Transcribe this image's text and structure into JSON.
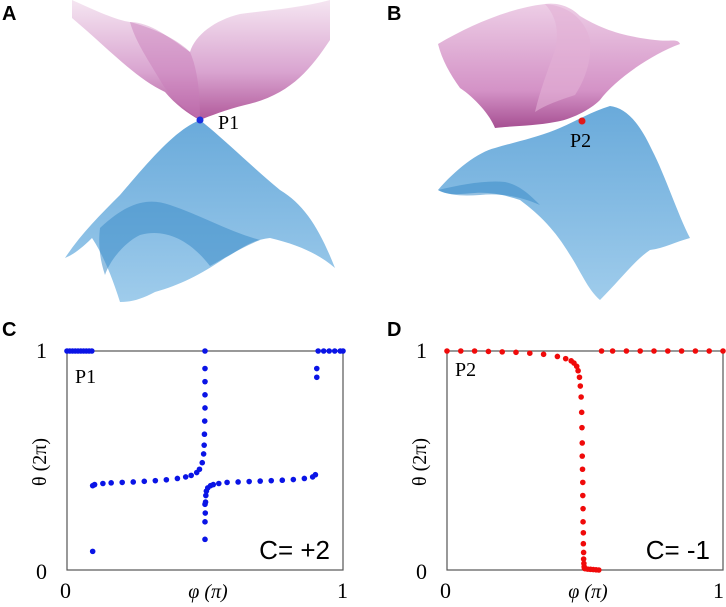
{
  "panels": {
    "A": {
      "letter": "A",
      "point_label": "P1",
      "point_color": "#1a2fe0"
    },
    "B": {
      "letter": "B",
      "point_label": "P2",
      "point_color": "#e01a1a"
    },
    "C": {
      "letter": "C"
    },
    "D": {
      "letter": "D"
    }
  },
  "colors": {
    "upper_band": "#c770b4",
    "lower_band": "#5aa6db",
    "series_blue": "#0a14e6",
    "series_red": "#f00a0a"
  },
  "chart_data": [
    {
      "panel": "C",
      "type": "scatter",
      "xlabel": "φ (π)",
      "ylabel": "θ (2π)",
      "xlim": [
        0,
        1
      ],
      "ylim": [
        0,
        1
      ],
      "xticks": [
        "0",
        "1"
      ],
      "yticks": [
        "0",
        "1"
      ],
      "inset_label": "P1",
      "annotation": "C= +2",
      "grid": false,
      "series": [
        {
          "color": "#0a14e6",
          "segments": [
            {
              "x": [
                0.0,
                0.01,
                0.02,
                0.03,
                0.04,
                0.05,
                0.06,
                0.07,
                0.08,
                0.09
              ],
              "y": [
                1.0,
                1.0,
                1.0,
                1.0,
                1.0,
                1.0,
                1.0,
                1.0,
                1.0,
                1.0
              ]
            },
            {
              "x": [
                0.093,
                0.093
              ],
              "y": [
                0.085,
                0.385
              ]
            },
            {
              "x": [
                0.1,
                0.13,
                0.16,
                0.2,
                0.24,
                0.28,
                0.32,
                0.36,
                0.4,
                0.43,
                0.45,
                0.47,
                0.48,
                0.49,
                0.495
              ],
              "y": [
                0.39,
                0.395,
                0.398,
                0.4,
                0.402,
                0.405,
                0.408,
                0.412,
                0.418,
                0.425,
                0.432,
                0.445,
                0.46,
                0.49,
                0.53
              ]
            },
            {
              "x": [
                0.497,
                0.498,
                0.499,
                0.5,
                0.5,
                0.5,
                0.5,
                0.5,
                0.5,
                0.5,
                0.5
              ],
              "y": [
                0.57,
                0.62,
                0.68,
                0.74,
                0.8,
                0.86,
                0.92,
                1.0,
                0.3,
                0.22,
                0.14
              ]
            },
            {
              "x": [
                0.501,
                0.502,
                0.503,
                0.505,
                0.51,
                0.52,
                0.53,
                0.55,
                0.58,
                0.62,
                0.66,
                0.7,
                0.74,
                0.78,
                0.82,
                0.86,
                0.89,
                0.9
              ],
              "y": [
                0.26,
                0.31,
                0.34,
                0.36,
                0.375,
                0.385,
                0.39,
                0.395,
                0.4,
                0.402,
                0.404,
                0.406,
                0.408,
                0.41,
                0.413,
                0.418,
                0.425,
                0.435
              ]
            },
            {
              "x": [
                0.905,
                0.905
              ],
              "y": [
                0.88,
                0.92
              ]
            },
            {
              "x": [
                0.91,
                0.93,
                0.95,
                0.97,
                0.99,
                1.0
              ],
              "y": [
                1.0,
                1.0,
                1.0,
                1.0,
                1.0,
                1.0
              ]
            }
          ]
        }
      ]
    },
    {
      "panel": "D",
      "type": "scatter",
      "xlabel": "φ (π)",
      "ylabel": "θ (2π)",
      "xlim": [
        0,
        1
      ],
      "ylim": [
        0,
        1
      ],
      "xticks": [
        "0",
        "1"
      ],
      "yticks": [
        "0",
        "1"
      ],
      "inset_label": "P2",
      "annotation": "C= -1",
      "grid": false,
      "series": [
        {
          "color": "#f00a0a",
          "segments": [
            {
              "x": [
                0.0,
                0.05,
                0.1,
                0.15,
                0.2,
                0.25,
                0.3,
                0.35,
                0.4,
                0.43,
                0.45,
                0.46,
                0.47,
                0.475,
                0.48,
                0.483,
                0.486
              ],
              "y": [
                1.0,
                1.0,
                1.0,
                0.998,
                0.996,
                0.994,
                0.99,
                0.985,
                0.975,
                0.965,
                0.955,
                0.945,
                0.93,
                0.91,
                0.88,
                0.84,
                0.79
              ]
            },
            {
              "x": [
                0.488,
                0.489,
                0.49,
                0.49,
                0.491,
                0.492,
                0.492,
                0.493,
                0.493,
                0.494,
                0.494,
                0.495,
                0.495,
                0.496,
                0.497,
                0.498
              ],
              "y": [
                0.72,
                0.65,
                0.58,
                0.52,
                0.46,
                0.4,
                0.34,
                0.28,
                0.22,
                0.17,
                0.12,
                0.08,
                0.05,
                0.03,
                0.015,
                0.008
              ]
            },
            {
              "x": [
                0.5,
                0.51,
                0.52,
                0.53,
                0.54,
                0.55
              ],
              "y": [
                0.006,
                0.004,
                0.003,
                0.002,
                0.001,
                0.0
              ]
            },
            {
              "x": [
                0.56,
                0.6,
                0.65,
                0.7,
                0.75,
                0.8,
                0.85,
                0.9,
                0.95,
                1.0
              ],
              "y": [
                1.0,
                1.0,
                1.0,
                1.0,
                1.0,
                1.0,
                1.0,
                1.0,
                1.0,
                1.0
              ]
            }
          ]
        }
      ]
    }
  ]
}
